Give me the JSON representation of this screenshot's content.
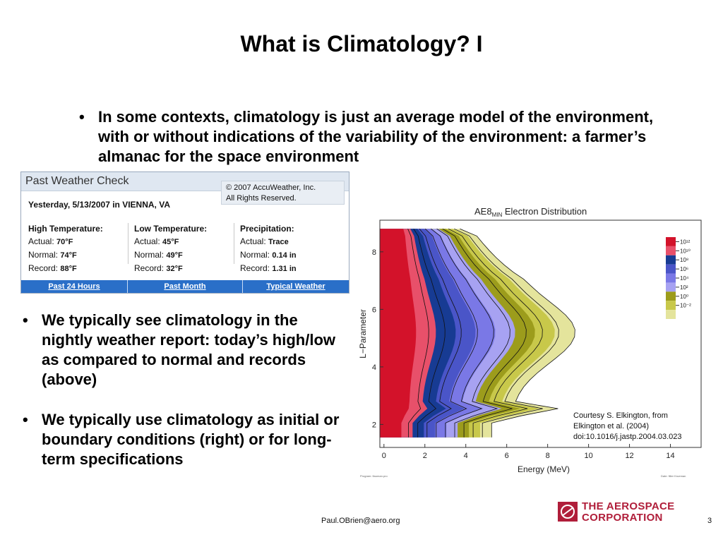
{
  "slide": {
    "title": "What is Climatology? I",
    "bullet_glyph": "•",
    "bullets": [
      "In some contexts, climatology is just an average model of the environment, with or without indications of the variability of the environment: a farmer’s almanac for the space environment",
      "We typically see climatology in the nightly weather report: today’s high/low as compared to normal and records (above)",
      "We typically use climatology as initial or boundary conditions (right) or for long-term specifications"
    ],
    "courtesy": [
      "Courtesy S. Elkington, from",
      "Elkington et al. (2004)",
      "doi:10.1016/j.jastp.2004.03.023"
    ],
    "footer_email": "Paul.OBrien@aero.org",
    "page_number": "3",
    "logo_lines": [
      "THE AEROSPACE",
      "CORPORATION"
    ]
  },
  "weather": {
    "title": "Past Weather Check",
    "copyright": [
      "© 2007 AccuWeather, Inc.",
      "All Rights Reserved."
    ],
    "date": "Yesterday, 5/13/2007 in VIENNA, VA",
    "columns": [
      {
        "heading": "High Temperature:",
        "rows": [
          [
            "Actual:",
            "70°F"
          ],
          [
            "Normal:",
            "74°F"
          ],
          [
            "Record:",
            "88°F"
          ]
        ]
      },
      {
        "heading": "Low Temperature:",
        "rows": [
          [
            "Actual:",
            "45°F"
          ],
          [
            "Normal:",
            "49°F"
          ],
          [
            "Record:",
            "32°F"
          ]
        ]
      },
      {
        "heading": "Precipitation:",
        "rows": [
          [
            "Actual:",
            "Trace"
          ],
          [
            "Normal:",
            "0.14 in"
          ],
          [
            "Record:",
            "1.31 in"
          ]
        ]
      }
    ],
    "links": [
      "Past 24 Hours",
      "Past Month",
      "Typical Weather"
    ]
  },
  "figure": {
    "title": "AE8",
    "title_sub": "MIN",
    "title_rest": " Electron Distribution",
    "xlabel": "Energy (MeV)",
    "ylabel": "L−Parameter",
    "xticks": [
      "0",
      "2",
      "4",
      "6",
      "8",
      "10",
      "12",
      "14"
    ],
    "yticks": [
      "2",
      "4",
      "6",
      "8"
    ],
    "colorbar_labels": [
      "10¹²",
      "10¹⁰",
      "10⁸",
      "10⁶",
      "10⁴",
      "10²",
      "10⁰",
      "10⁻²"
    ],
    "colors": [
      "#d3122a",
      "#e8506a",
      "#173b93",
      "#4a55c8",
      "#7a78e6",
      "#a7a2f2",
      "#9c9c1c",
      "#c8c84a",
      "#e4e49c"
    ],
    "footnote_left": "Program: flauman.pro",
    "footnote_right": "Date: filler Krueman"
  }
}
